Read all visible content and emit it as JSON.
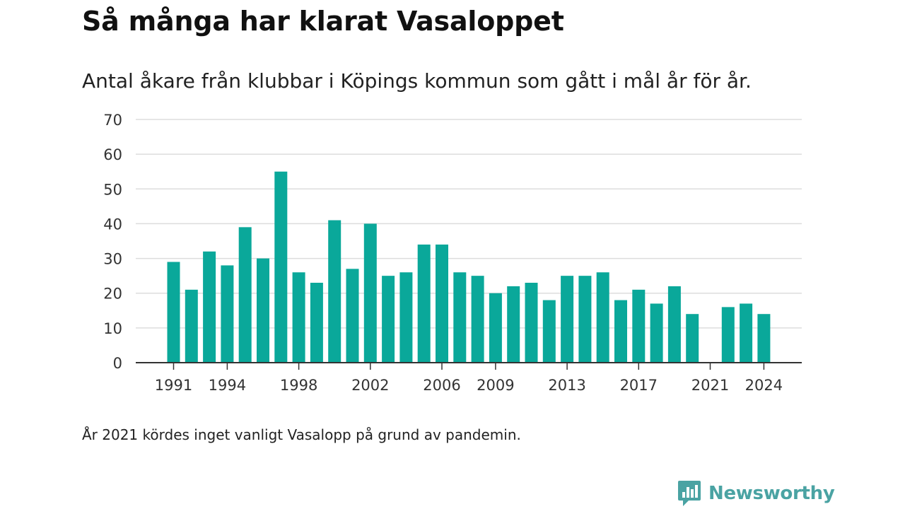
{
  "header": {
    "title": "Så många har klarat Vasaloppet",
    "subtitle": "Antal åkare från klubbar i Köpings kommun som gått i mål år för år."
  },
  "footer": {
    "note": "År 2021 kördes inget vanligt Vasalopp på grund av pandemin.",
    "brand": "Newsworthy",
    "brand_icon": "newsworthy-logo-icon"
  },
  "colors": {
    "bar": "#0aa89a",
    "grid": "#dddddd",
    "axis": "#333333",
    "brand": "#4aa3a3"
  },
  "chart_data": {
    "type": "bar",
    "categories": [
      1991,
      1992,
      1993,
      1994,
      1995,
      1996,
      1997,
      1998,
      1999,
      2000,
      2001,
      2002,
      2003,
      2004,
      2005,
      2006,
      2007,
      2008,
      2009,
      2010,
      2011,
      2012,
      2013,
      2014,
      2015,
      2016,
      2017,
      2018,
      2019,
      2020,
      2021,
      2022,
      2023,
      2024
    ],
    "values": [
      29,
      21,
      32,
      28,
      39,
      30,
      55,
      26,
      23,
      41,
      27,
      40,
      25,
      26,
      34,
      34,
      26,
      25,
      20,
      22,
      23,
      18,
      25,
      25,
      26,
      18,
      21,
      17,
      22,
      14,
      null,
      16,
      17,
      14
    ],
    "xticks": [
      1991,
      1994,
      1998,
      2002,
      2006,
      2009,
      2013,
      2017,
      2021,
      2024
    ],
    "yticks": [
      0,
      10,
      20,
      30,
      40,
      50,
      60,
      70
    ],
    "ylim": [
      0,
      70
    ],
    "grid": true,
    "legend": "none"
  }
}
